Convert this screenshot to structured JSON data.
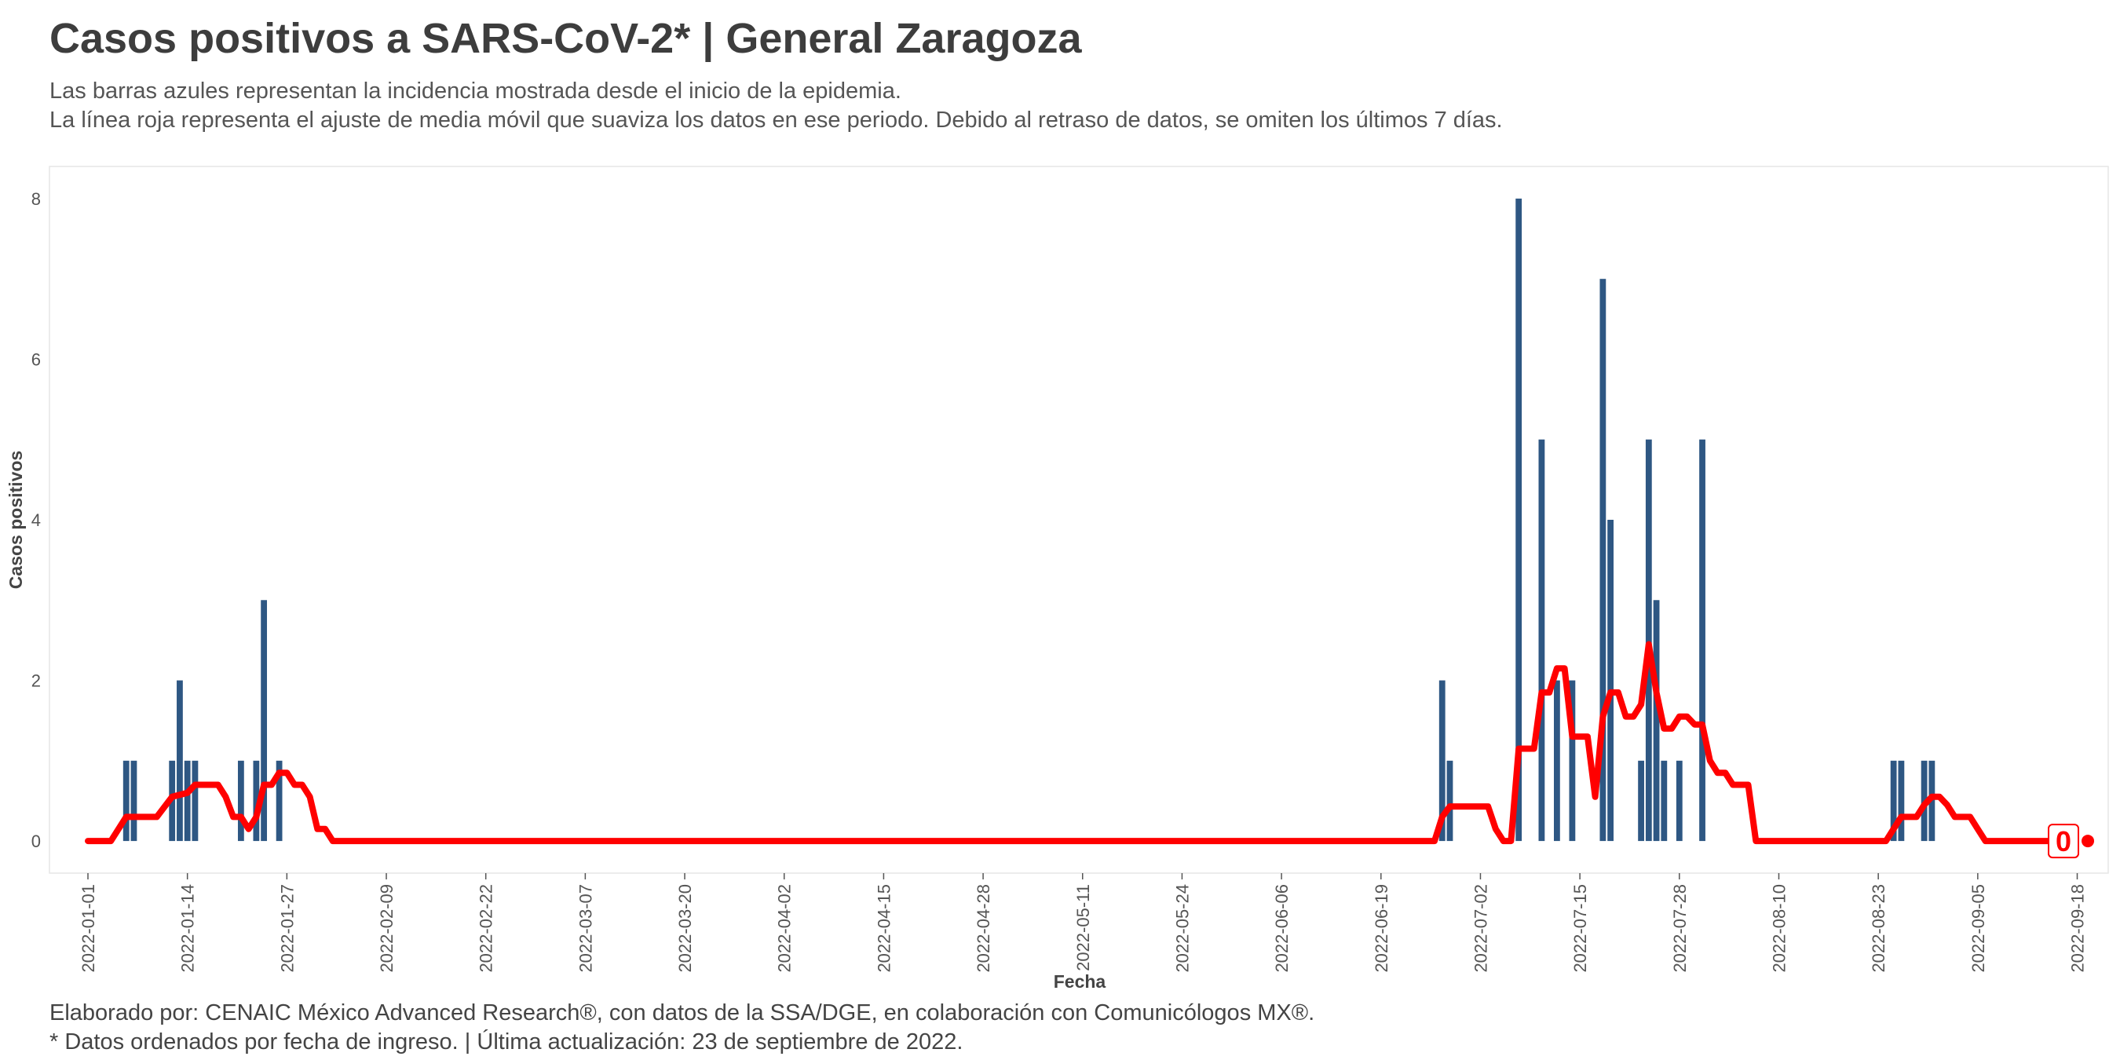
{
  "title": "Casos positivos a SARS-CoV-2* | General Zaragoza",
  "subtitle_lines": [
    "Las barras azules representan la incidencia mostrada desde el inicio de la epidemia.",
    "La línea roja representa el ajuste de media móvil que suaviza los datos en ese periodo. Debido al retraso de datos, se omiten los últimos 7 días."
  ],
  "caption_lines": [
    "Elaborado por: CENAIC México Advanced Research®, con datos de la SSA/DGE, en colaboración con Comunicólogos MX®.",
    "* Datos ordenados por fecha de ingreso. | Última actualización: 23 de septiembre de 2022."
  ],
  "colors": {
    "bars": "#2e5783",
    "line": "#ff0000",
    "frame": "#e6e6e6",
    "title": "#3d3d3d"
  },
  "chart_data": {
    "type": "bar",
    "xlabel": "Fecha",
    "ylabel": "Casos positivos",
    "x_start": "2022-01-01",
    "x_end": "2022-09-20",
    "ylim": [
      -0.4,
      8.4
    ],
    "y_ticks": [
      0,
      2,
      4,
      6,
      8
    ],
    "x_ticks": [
      "2022-01-01",
      "2022-01-14",
      "2022-01-27",
      "2022-02-09",
      "2022-02-22",
      "2022-03-07",
      "2022-03-20",
      "2022-04-02",
      "2022-04-15",
      "2022-04-28",
      "2022-05-11",
      "2022-05-24",
      "2022-06-06",
      "2022-06-19",
      "2022-07-02",
      "2022-07-15",
      "2022-07-28",
      "2022-08-10",
      "2022-08-23",
      "2022-09-05",
      "2022-09-18"
    ],
    "grid": false,
    "series": [
      {
        "type": "bar",
        "points": [
          {
            "date": "2022-01-06",
            "value": 1
          },
          {
            "date": "2022-01-07",
            "value": 1
          },
          {
            "date": "2022-01-12",
            "value": 1
          },
          {
            "date": "2022-01-13",
            "value": 2
          },
          {
            "date": "2022-01-14",
            "value": 1
          },
          {
            "date": "2022-01-15",
            "value": 1
          },
          {
            "date": "2022-01-21",
            "value": 1
          },
          {
            "date": "2022-01-23",
            "value": 1
          },
          {
            "date": "2022-01-24",
            "value": 3
          },
          {
            "date": "2022-01-26",
            "value": 1
          },
          {
            "date": "2022-06-27",
            "value": 2
          },
          {
            "date": "2022-06-28",
            "value": 1
          },
          {
            "date": "2022-07-07",
            "value": 8
          },
          {
            "date": "2022-07-10",
            "value": 5
          },
          {
            "date": "2022-07-12",
            "value": 2
          },
          {
            "date": "2022-07-14",
            "value": 2
          },
          {
            "date": "2022-07-18",
            "value": 7
          },
          {
            "date": "2022-07-19",
            "value": 4
          },
          {
            "date": "2022-07-23",
            "value": 1
          },
          {
            "date": "2022-07-24",
            "value": 5
          },
          {
            "date": "2022-07-25",
            "value": 3
          },
          {
            "date": "2022-07-26",
            "value": 1
          },
          {
            "date": "2022-07-28",
            "value": 1
          },
          {
            "date": "2022-07-31",
            "value": 5
          },
          {
            "date": "2022-08-25",
            "value": 1
          },
          {
            "date": "2022-08-26",
            "value": 1
          },
          {
            "date": "2022-08-29",
            "value": 1
          },
          {
            "date": "2022-08-30",
            "value": 1
          }
        ]
      },
      {
        "type": "line",
        "points": [
          {
            "date": "2022-01-01",
            "value": 0
          },
          {
            "date": "2022-01-04",
            "value": 0
          },
          {
            "date": "2022-01-06",
            "value": 0.3
          },
          {
            "date": "2022-01-10",
            "value": 0.3
          },
          {
            "date": "2022-01-12",
            "value": 0.55
          },
          {
            "date": "2022-01-14",
            "value": 0.6
          },
          {
            "date": "2022-01-15",
            "value": 0.7
          },
          {
            "date": "2022-01-18",
            "value": 0.7
          },
          {
            "date": "2022-01-19",
            "value": 0.55
          },
          {
            "date": "2022-01-20",
            "value": 0.3
          },
          {
            "date": "2022-01-21",
            "value": 0.3
          },
          {
            "date": "2022-01-22",
            "value": 0.15
          },
          {
            "date": "2022-01-23",
            "value": 0.3
          },
          {
            "date": "2022-01-24",
            "value": 0.7
          },
          {
            "date": "2022-01-25",
            "value": 0.7
          },
          {
            "date": "2022-01-26",
            "value": 0.85
          },
          {
            "date": "2022-01-27",
            "value": 0.85
          },
          {
            "date": "2022-01-28",
            "value": 0.7
          },
          {
            "date": "2022-01-29",
            "value": 0.7
          },
          {
            "date": "2022-01-30",
            "value": 0.55
          },
          {
            "date": "2022-01-31",
            "value": 0.15
          },
          {
            "date": "2022-02-01",
            "value": 0.15
          },
          {
            "date": "2022-02-02",
            "value": 0
          },
          {
            "date": "2022-06-26",
            "value": 0
          },
          {
            "date": "2022-06-27",
            "value": 0.3
          },
          {
            "date": "2022-06-28",
            "value": 0.43
          },
          {
            "date": "2022-07-03",
            "value": 0.43
          },
          {
            "date": "2022-07-04",
            "value": 0.15
          },
          {
            "date": "2022-07-05",
            "value": 0
          },
          {
            "date": "2022-07-06",
            "value": 0
          },
          {
            "date": "2022-07-07",
            "value": 1.15
          },
          {
            "date": "2022-07-09",
            "value": 1.15
          },
          {
            "date": "2022-07-10",
            "value": 1.85
          },
          {
            "date": "2022-07-11",
            "value": 1.85
          },
          {
            "date": "2022-07-12",
            "value": 2.15
          },
          {
            "date": "2022-07-13",
            "value": 2.15
          },
          {
            "date": "2022-07-14",
            "value": 1.3
          },
          {
            "date": "2022-07-16",
            "value": 1.3
          },
          {
            "date": "2022-07-17",
            "value": 0.55
          },
          {
            "date": "2022-07-18",
            "value": 1.55
          },
          {
            "date": "2022-07-19",
            "value": 1.85
          },
          {
            "date": "2022-07-20",
            "value": 1.85
          },
          {
            "date": "2022-07-21",
            "value": 1.55
          },
          {
            "date": "2022-07-22",
            "value": 1.55
          },
          {
            "date": "2022-07-23",
            "value": 1.7
          },
          {
            "date": "2022-07-24",
            "value": 2.45
          },
          {
            "date": "2022-07-25",
            "value": 1.85
          },
          {
            "date": "2022-07-26",
            "value": 1.4
          },
          {
            "date": "2022-07-27",
            "value": 1.4
          },
          {
            "date": "2022-07-28",
            "value": 1.55
          },
          {
            "date": "2022-07-29",
            "value": 1.55
          },
          {
            "date": "2022-07-30",
            "value": 1.45
          },
          {
            "date": "2022-07-31",
            "value": 1.45
          },
          {
            "date": "2022-08-01",
            "value": 1.0
          },
          {
            "date": "2022-08-02",
            "value": 0.85
          },
          {
            "date": "2022-08-03",
            "value": 0.85
          },
          {
            "date": "2022-08-04",
            "value": 0.7
          },
          {
            "date": "2022-08-06",
            "value": 0.7
          },
          {
            "date": "2022-08-07",
            "value": 0
          },
          {
            "date": "2022-08-24",
            "value": 0
          },
          {
            "date": "2022-08-25",
            "value": 0.15
          },
          {
            "date": "2022-08-26",
            "value": 0.3
          },
          {
            "date": "2022-08-28",
            "value": 0.3
          },
          {
            "date": "2022-08-29",
            "value": 0.45
          },
          {
            "date": "2022-08-30",
            "value": 0.55
          },
          {
            "date": "2022-08-31",
            "value": 0.55
          },
          {
            "date": "2022-09-01",
            "value": 0.45
          },
          {
            "date": "2022-09-02",
            "value": 0.3
          },
          {
            "date": "2022-09-04",
            "value": 0.3
          },
          {
            "date": "2022-09-05",
            "value": 0.15
          },
          {
            "date": "2022-09-06",
            "value": 0
          },
          {
            "date": "2022-09-16",
            "value": 0
          }
        ]
      }
    ],
    "end_label": {
      "date": "2022-09-16",
      "value": 0,
      "text": "0"
    }
  }
}
